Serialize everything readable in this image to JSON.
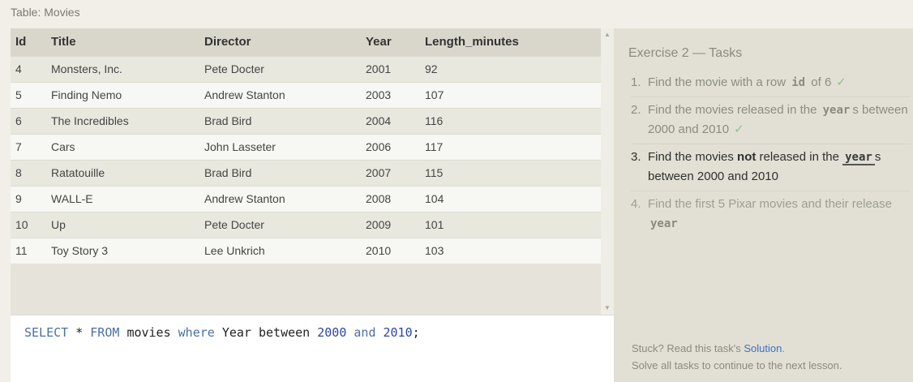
{
  "table_caption": "Table: Movies",
  "table": {
    "columns": [
      "Id",
      "Title",
      "Director",
      "Year",
      "Length_minutes"
    ],
    "rows": [
      [
        "4",
        "Monsters, Inc.",
        "Pete Docter",
        "2001",
        "92"
      ],
      [
        "5",
        "Finding Nemo",
        "Andrew Stanton",
        "2003",
        "107"
      ],
      [
        "6",
        "The Incredibles",
        "Brad Bird",
        "2004",
        "116"
      ],
      [
        "7",
        "Cars",
        "John Lasseter",
        "2006",
        "117"
      ],
      [
        "8",
        "Ratatouille",
        "Brad Bird",
        "2007",
        "115"
      ],
      [
        "9",
        "WALL-E",
        "Andrew Stanton",
        "2008",
        "104"
      ],
      [
        "10",
        "Up",
        "Pete Docter",
        "2009",
        "101"
      ],
      [
        "11",
        "Toy Story 3",
        "Lee Unkrich",
        "2010",
        "103"
      ]
    ]
  },
  "query": {
    "kw_select": "SELECT",
    "star": "*",
    "kw_from": "FROM",
    "table": "movies",
    "kw_where": "where",
    "column": "Year",
    "kw_between": "between",
    "low": "2000",
    "kw_and": "and",
    "high": "2010",
    "terminator": ";"
  },
  "exercise": {
    "title": "Exercise 2 — Tasks",
    "tasks": [
      {
        "num": "1.",
        "pre": "Find the movie with a row ",
        "code": "id",
        "post": " of 6",
        "check": "✓"
      },
      {
        "num": "2.",
        "pre": "Find the movies released in the ",
        "code": "year",
        "post": "s between 2000 and 2010",
        "check": "✓"
      },
      {
        "num": "3.",
        "pre": "Find the movies ",
        "bold": "not",
        "mid": " released in the ",
        "code": "year",
        "post": "s between 2000 and 2010"
      },
      {
        "num": "4.",
        "pre": "Find the first 5 Pixar movies and their release ",
        "code": "year"
      }
    ]
  },
  "footer": {
    "stuck_prefix": "Stuck? Read this task's ",
    "solution_link": "Solution",
    "stuck_suffix": ".",
    "continue_text": "Solve all tasks to continue to the next lesson."
  },
  "colors": {
    "check": "#8fc08f",
    "link": "#3a6fc4",
    "sql_keyword": "#4a6fa5",
    "sql_number": "#2a45a8"
  },
  "icons": {
    "scroll_up": "triangle-up-icon",
    "scroll_down": "triangle-down-icon",
    "check": "check-icon"
  }
}
